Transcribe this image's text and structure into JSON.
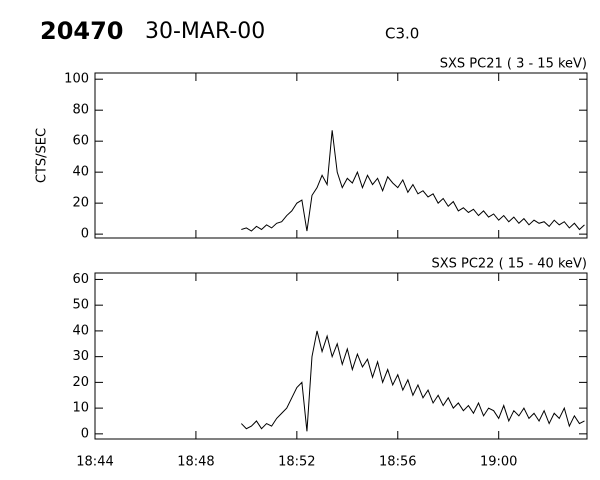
{
  "header": {
    "event": "20470",
    "date": "30-MAR-00",
    "class": "C3.0"
  },
  "chart_data": [
    {
      "type": "line",
      "title": "SXS PC21  (  3 - 15 keV)",
      "y_label": "CTS/SEC",
      "xlim": [
        1124,
        1143.5
      ],
      "ylim": [
        -2.5,
        104
      ],
      "xticks": [
        1124,
        1128,
        1132,
        1136,
        1140
      ],
      "show_xtick_labels": false,
      "yticks": [
        0,
        20,
        40,
        60,
        80,
        100
      ],
      "x": [
        1129.8,
        1130.0,
        1130.2,
        1130.4,
        1130.6,
        1130.8,
        1131.0,
        1131.2,
        1131.4,
        1131.6,
        1131.8,
        1132.0,
        1132.2,
        1132.4,
        1132.6,
        1132.8,
        1133.0,
        1133.2,
        1133.4,
        1133.6,
        1133.8,
        1134.0,
        1134.2,
        1134.4,
        1134.6,
        1134.8,
        1135.0,
        1135.2,
        1135.4,
        1135.6,
        1135.8,
        1136.0,
        1136.2,
        1136.4,
        1136.6,
        1136.8,
        1137.0,
        1137.2,
        1137.4,
        1137.6,
        1137.8,
        1138.0,
        1138.2,
        1138.4,
        1138.6,
        1138.8,
        1139.0,
        1139.2,
        1139.4,
        1139.6,
        1139.8,
        1140.0,
        1140.2,
        1140.4,
        1140.6,
        1140.8,
        1141.0,
        1141.2,
        1141.4,
        1141.6,
        1141.8,
        1142.0,
        1142.2,
        1142.4,
        1142.6,
        1142.8,
        1143.0,
        1143.2,
        1143.4
      ],
      "series": [
        {
          "color": "#000000",
          "values": [
            3,
            4,
            2,
            5,
            3,
            6,
            4,
            7,
            8,
            12,
            15,
            20,
            22,
            2,
            25,
            30,
            38,
            32,
            67,
            40,
            30,
            36,
            33,
            40,
            30,
            38,
            32,
            36,
            28,
            37,
            33,
            30,
            35,
            27,
            32,
            26,
            28,
            24,
            26,
            20,
            23,
            18,
            21,
            15,
            17,
            14,
            16,
            12,
            15,
            11,
            13,
            9,
            12,
            8,
            11,
            7,
            10,
            6,
            9,
            7,
            8,
            5,
            9,
            6,
            8,
            4,
            7,
            3,
            6
          ]
        }
      ]
    },
    {
      "type": "line",
      "title": "SXS PC22  ( 15 - 40 keV)",
      "xlim": [
        1124,
        1143.5
      ],
      "ylim": [
        -2,
        62.5
      ],
      "xticks": [
        {
          "value": 1124,
          "label": "18:44"
        },
        {
          "value": 1128,
          "label": "18:48"
        },
        {
          "value": 1132,
          "label": "18:52"
        },
        {
          "value": 1136,
          "label": "18:56"
        },
        {
          "value": 1140,
          "label": "19:00"
        }
      ],
      "show_xtick_labels": true,
      "yticks": [
        0,
        10,
        20,
        30,
        40,
        50,
        60
      ],
      "x": [
        1129.8,
        1130.0,
        1130.2,
        1130.4,
        1130.6,
        1130.8,
        1131.0,
        1131.2,
        1131.4,
        1131.6,
        1131.8,
        1132.0,
        1132.2,
        1132.4,
        1132.6,
        1132.8,
        1133.0,
        1133.2,
        1133.4,
        1133.6,
        1133.8,
        1134.0,
        1134.2,
        1134.4,
        1134.6,
        1134.8,
        1135.0,
        1135.2,
        1135.4,
        1135.6,
        1135.8,
        1136.0,
        1136.2,
        1136.4,
        1136.6,
        1136.8,
        1137.0,
        1137.2,
        1137.4,
        1137.6,
        1137.8,
        1138.0,
        1138.2,
        1138.4,
        1138.6,
        1138.8,
        1139.0,
        1139.2,
        1139.4,
        1139.6,
        1139.8,
        1140.0,
        1140.2,
        1140.4,
        1140.6,
        1140.8,
        1141.0,
        1141.2,
        1141.4,
        1141.6,
        1141.8,
        1142.0,
        1142.2,
        1142.4,
        1142.6,
        1142.8,
        1143.0,
        1143.2,
        1143.4
      ],
      "series": [
        {
          "color": "#000000",
          "values": [
            4,
            2,
            3,
            5,
            2,
            4,
            3,
            6,
            8,
            10,
            14,
            18,
            20,
            1,
            30,
            40,
            32,
            38,
            30,
            35,
            27,
            33,
            25,
            31,
            26,
            29,
            22,
            28,
            20,
            25,
            19,
            23,
            17,
            21,
            15,
            19,
            14,
            17,
            12,
            15,
            11,
            14,
            10,
            12,
            9,
            11,
            8,
            12,
            7,
            10,
            9,
            6,
            11,
            5,
            9,
            7,
            10,
            6,
            8,
            5,
            9,
            4,
            8,
            6,
            10,
            3,
            7,
            4,
            5
          ]
        }
      ]
    }
  ]
}
